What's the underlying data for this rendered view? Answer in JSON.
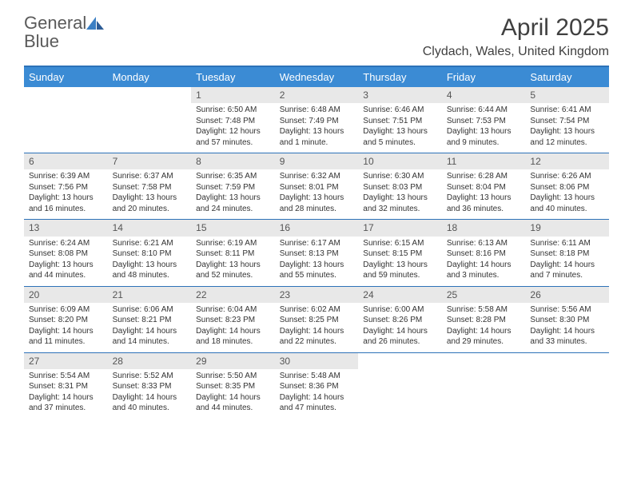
{
  "logo": {
    "text_general": "General",
    "text_blue": "Blue"
  },
  "title": "April 2025",
  "location": "Clydach, Wales, United Kingdom",
  "colors": {
    "header_bar": "#3b8bd4",
    "border": "#2d72b8",
    "daynum_bg": "#e8e8e8",
    "text": "#333333"
  },
  "weekdays": [
    "Sunday",
    "Monday",
    "Tuesday",
    "Wednesday",
    "Thursday",
    "Friday",
    "Saturday"
  ],
  "weeks": [
    [
      {
        "n": "",
        "sr": "",
        "ss": "",
        "dl": ""
      },
      {
        "n": "",
        "sr": "",
        "ss": "",
        "dl": ""
      },
      {
        "n": "1",
        "sr": "Sunrise: 6:50 AM",
        "ss": "Sunset: 7:48 PM",
        "dl": "Daylight: 12 hours and 57 minutes."
      },
      {
        "n": "2",
        "sr": "Sunrise: 6:48 AM",
        "ss": "Sunset: 7:49 PM",
        "dl": "Daylight: 13 hours and 1 minute."
      },
      {
        "n": "3",
        "sr": "Sunrise: 6:46 AM",
        "ss": "Sunset: 7:51 PM",
        "dl": "Daylight: 13 hours and 5 minutes."
      },
      {
        "n": "4",
        "sr": "Sunrise: 6:44 AM",
        "ss": "Sunset: 7:53 PM",
        "dl": "Daylight: 13 hours and 9 minutes."
      },
      {
        "n": "5",
        "sr": "Sunrise: 6:41 AM",
        "ss": "Sunset: 7:54 PM",
        "dl": "Daylight: 13 hours and 12 minutes."
      }
    ],
    [
      {
        "n": "6",
        "sr": "Sunrise: 6:39 AM",
        "ss": "Sunset: 7:56 PM",
        "dl": "Daylight: 13 hours and 16 minutes."
      },
      {
        "n": "7",
        "sr": "Sunrise: 6:37 AM",
        "ss": "Sunset: 7:58 PM",
        "dl": "Daylight: 13 hours and 20 minutes."
      },
      {
        "n": "8",
        "sr": "Sunrise: 6:35 AM",
        "ss": "Sunset: 7:59 PM",
        "dl": "Daylight: 13 hours and 24 minutes."
      },
      {
        "n": "9",
        "sr": "Sunrise: 6:32 AM",
        "ss": "Sunset: 8:01 PM",
        "dl": "Daylight: 13 hours and 28 minutes."
      },
      {
        "n": "10",
        "sr": "Sunrise: 6:30 AM",
        "ss": "Sunset: 8:03 PM",
        "dl": "Daylight: 13 hours and 32 minutes."
      },
      {
        "n": "11",
        "sr": "Sunrise: 6:28 AM",
        "ss": "Sunset: 8:04 PM",
        "dl": "Daylight: 13 hours and 36 minutes."
      },
      {
        "n": "12",
        "sr": "Sunrise: 6:26 AM",
        "ss": "Sunset: 8:06 PM",
        "dl": "Daylight: 13 hours and 40 minutes."
      }
    ],
    [
      {
        "n": "13",
        "sr": "Sunrise: 6:24 AM",
        "ss": "Sunset: 8:08 PM",
        "dl": "Daylight: 13 hours and 44 minutes."
      },
      {
        "n": "14",
        "sr": "Sunrise: 6:21 AM",
        "ss": "Sunset: 8:10 PM",
        "dl": "Daylight: 13 hours and 48 minutes."
      },
      {
        "n": "15",
        "sr": "Sunrise: 6:19 AM",
        "ss": "Sunset: 8:11 PM",
        "dl": "Daylight: 13 hours and 52 minutes."
      },
      {
        "n": "16",
        "sr": "Sunrise: 6:17 AM",
        "ss": "Sunset: 8:13 PM",
        "dl": "Daylight: 13 hours and 55 minutes."
      },
      {
        "n": "17",
        "sr": "Sunrise: 6:15 AM",
        "ss": "Sunset: 8:15 PM",
        "dl": "Daylight: 13 hours and 59 minutes."
      },
      {
        "n": "18",
        "sr": "Sunrise: 6:13 AM",
        "ss": "Sunset: 8:16 PM",
        "dl": "Daylight: 14 hours and 3 minutes."
      },
      {
        "n": "19",
        "sr": "Sunrise: 6:11 AM",
        "ss": "Sunset: 8:18 PM",
        "dl": "Daylight: 14 hours and 7 minutes."
      }
    ],
    [
      {
        "n": "20",
        "sr": "Sunrise: 6:09 AM",
        "ss": "Sunset: 8:20 PM",
        "dl": "Daylight: 14 hours and 11 minutes."
      },
      {
        "n": "21",
        "sr": "Sunrise: 6:06 AM",
        "ss": "Sunset: 8:21 PM",
        "dl": "Daylight: 14 hours and 14 minutes."
      },
      {
        "n": "22",
        "sr": "Sunrise: 6:04 AM",
        "ss": "Sunset: 8:23 PM",
        "dl": "Daylight: 14 hours and 18 minutes."
      },
      {
        "n": "23",
        "sr": "Sunrise: 6:02 AM",
        "ss": "Sunset: 8:25 PM",
        "dl": "Daylight: 14 hours and 22 minutes."
      },
      {
        "n": "24",
        "sr": "Sunrise: 6:00 AM",
        "ss": "Sunset: 8:26 PM",
        "dl": "Daylight: 14 hours and 26 minutes."
      },
      {
        "n": "25",
        "sr": "Sunrise: 5:58 AM",
        "ss": "Sunset: 8:28 PM",
        "dl": "Daylight: 14 hours and 29 minutes."
      },
      {
        "n": "26",
        "sr": "Sunrise: 5:56 AM",
        "ss": "Sunset: 8:30 PM",
        "dl": "Daylight: 14 hours and 33 minutes."
      }
    ],
    [
      {
        "n": "27",
        "sr": "Sunrise: 5:54 AM",
        "ss": "Sunset: 8:31 PM",
        "dl": "Daylight: 14 hours and 37 minutes."
      },
      {
        "n": "28",
        "sr": "Sunrise: 5:52 AM",
        "ss": "Sunset: 8:33 PM",
        "dl": "Daylight: 14 hours and 40 minutes."
      },
      {
        "n": "29",
        "sr": "Sunrise: 5:50 AM",
        "ss": "Sunset: 8:35 PM",
        "dl": "Daylight: 14 hours and 44 minutes."
      },
      {
        "n": "30",
        "sr": "Sunrise: 5:48 AM",
        "ss": "Sunset: 8:36 PM",
        "dl": "Daylight: 14 hours and 47 minutes."
      },
      {
        "n": "",
        "sr": "",
        "ss": "",
        "dl": ""
      },
      {
        "n": "",
        "sr": "",
        "ss": "",
        "dl": ""
      },
      {
        "n": "",
        "sr": "",
        "ss": "",
        "dl": ""
      }
    ]
  ]
}
